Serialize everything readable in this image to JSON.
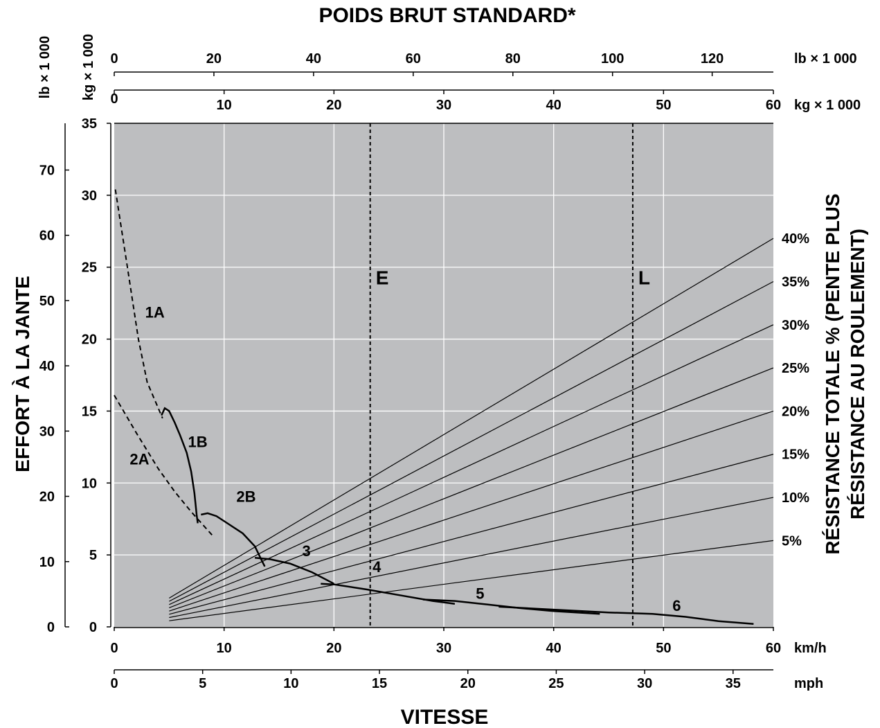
{
  "chart_data": {
    "type": "line",
    "title": "POIDS BRUT STANDARD*",
    "xlabel": "VITESSE",
    "ylabel": "EFFORT À LA JANTE",
    "right_label_line1": "RÉSISTANCE TOTALE % (PENTE PLUS",
    "right_label_line2": "RÉSISTANCE AU ROULEMENT)",
    "x_kmh": {
      "unit": "km/h",
      "min": 0,
      "max": 60,
      "ticks": [
        "0",
        "10",
        "20",
        "30",
        "40",
        "50",
        "60"
      ]
    },
    "x_mph": {
      "unit": "mph",
      "ticks": [
        "0",
        "5",
        "10",
        "15",
        "20",
        "25",
        "30",
        "35"
      ]
    },
    "top_lb": {
      "unit": "lb × 1 000",
      "ticks": [
        "0",
        "20",
        "40",
        "60",
        "80",
        "100",
        "120"
      ]
    },
    "top_kg": {
      "unit": "kg × 1 000",
      "ticks": [
        "0",
        "10",
        "20",
        "30",
        "40",
        "50",
        "60"
      ]
    },
    "left_kg": {
      "unit": "kg × 1 000",
      "min": 0,
      "max": 35,
      "ticks": [
        "0",
        "5",
        "10",
        "15",
        "20",
        "25",
        "30",
        "35"
      ]
    },
    "left_lb": {
      "unit": "lb × 1 000",
      "ticks": [
        "0",
        "10",
        "20",
        "30",
        "40",
        "50",
        "60",
        "70"
      ]
    },
    "grid": true,
    "background": "#bdbec0",
    "resistance_lines": [
      {
        "label": "5%",
        "weight_kg_1000": 60,
        "rimpull_at_60": 3
      },
      {
        "label": "10%",
        "weight_kg_1000": 60,
        "rimpull_at_60": 6
      },
      {
        "label": "15%",
        "weight_kg_1000": 60,
        "rimpull_at_60": 9
      },
      {
        "label": "20%",
        "weight_kg_1000": 60,
        "rimpull_at_60": 12
      },
      {
        "label": "25%",
        "weight_kg_1000": 60,
        "rimpull_at_60": 15
      },
      {
        "label": "30%",
        "weight_kg_1000": 60,
        "rimpull_at_60": 18
      },
      {
        "label": "35%",
        "weight_kg_1000": 60,
        "rimpull_at_60": 21
      },
      {
        "label": "40%",
        "weight_kg_1000": 60,
        "rimpull_at_60": 24
      }
    ],
    "markers": [
      {
        "label": "E",
        "weight_kg_1000": 23.3
      },
      {
        "label": "L",
        "weight_kg_1000": 47.2
      }
    ],
    "series": [
      {
        "name": "1A",
        "style": "dashed",
        "label_at": [
          3.7,
          21.5
        ],
        "points": [
          [
            0.1,
            30.4
          ],
          [
            1.2,
            25
          ],
          [
            2.2,
            20
          ],
          [
            3.0,
            17
          ],
          [
            4.4,
            14.5
          ]
        ]
      },
      {
        "name": "2A",
        "style": "dashed",
        "label_at": [
          2.3,
          11.3
        ],
        "points": [
          [
            0.0,
            16.1
          ],
          [
            2.0,
            13.5
          ],
          [
            4.0,
            11
          ],
          [
            5.5,
            9.4
          ],
          [
            7.0,
            8.0
          ],
          [
            9.0,
            6.3
          ]
        ]
      },
      {
        "name": "1B",
        "style": "solid",
        "label_at": [
          7.6,
          12.5
        ],
        "points": [
          [
            4.3,
            14.7
          ],
          [
            4.6,
            15.2
          ],
          [
            5.0,
            15.0
          ],
          [
            5.5,
            14.2
          ],
          [
            6.0,
            13.3
          ],
          [
            6.6,
            12.1
          ],
          [
            7.0,
            10.8
          ],
          [
            7.3,
            9.3
          ],
          [
            7.5,
            7.8
          ],
          [
            7.6,
            7.2
          ]
        ]
      },
      {
        "name": "2B",
        "style": "solid",
        "label_at": [
          12.0,
          8.7
        ],
        "points": [
          [
            7.9,
            7.8
          ],
          [
            8.5,
            7.9
          ],
          [
            9.3,
            7.7
          ],
          [
            10.5,
            7.1
          ],
          [
            11.7,
            6.5
          ],
          [
            12.8,
            5.6
          ],
          [
            13.5,
            4.5
          ],
          [
            13.7,
            4.2
          ]
        ]
      },
      {
        "name": "3",
        "style": "solid",
        "label_at": [
          17.5,
          4.9
        ],
        "points": [
          [
            12.8,
            4.8
          ],
          [
            14.2,
            4.7
          ],
          [
            16,
            4.4
          ],
          [
            18,
            3.8
          ],
          [
            20,
            3.0
          ]
        ]
      },
      {
        "name": "4",
        "style": "solid",
        "label_at": [
          23.9,
          3.8
        ],
        "points": [
          [
            18.8,
            3.0
          ],
          [
            20,
            2.95
          ],
          [
            23,
            2.6
          ],
          [
            26,
            2.2
          ],
          [
            29,
            1.8
          ],
          [
            31,
            1.6
          ]
        ]
      },
      {
        "name": "5",
        "style": "solid",
        "label_at": [
          33.3,
          1.95
        ],
        "points": [
          [
            28.1,
            1.9
          ],
          [
            31,
            1.8
          ],
          [
            34,
            1.55
          ],
          [
            37,
            1.3
          ],
          [
            40,
            1.1
          ],
          [
            44.2,
            0.9
          ]
        ]
      },
      {
        "name": "6",
        "style": "solid",
        "label_at": [
          51.2,
          1.1
        ],
        "points": [
          [
            35,
            1.4
          ],
          [
            40,
            1.2
          ],
          [
            45,
            1.0
          ],
          [
            49,
            0.9
          ],
          [
            52,
            0.7
          ],
          [
            55,
            0.4
          ],
          [
            58.2,
            0.2
          ]
        ]
      }
    ]
  }
}
